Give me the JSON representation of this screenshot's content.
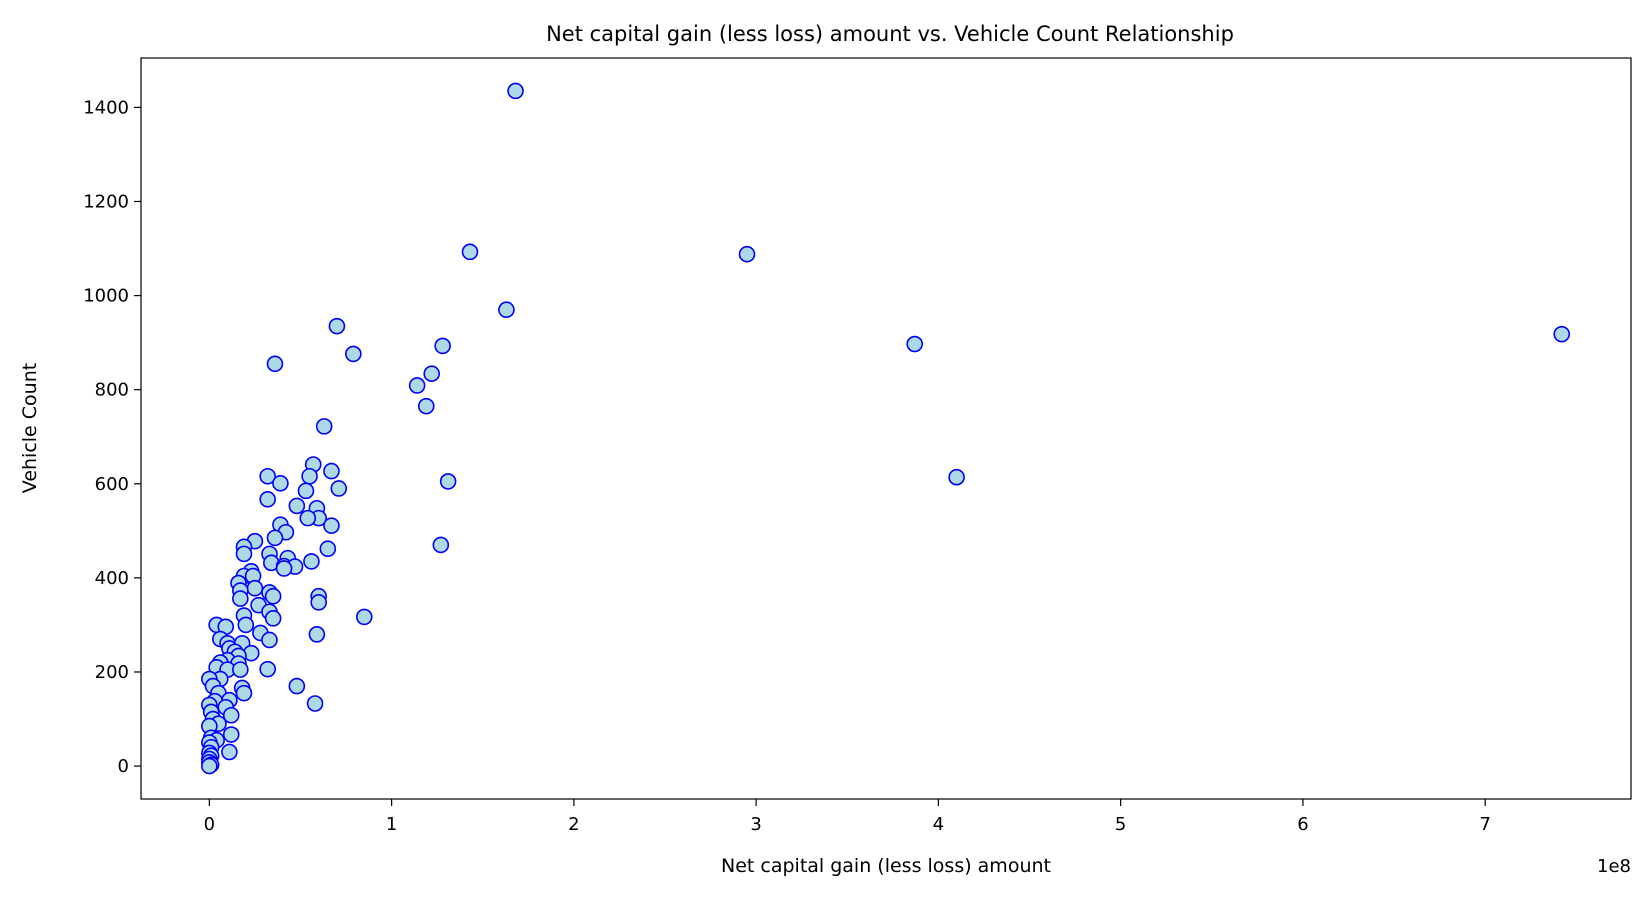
{
  "chart_data": {
    "type": "scatter",
    "title": "Net capital gain (less loss) amount vs. Vehicle Count Relationship",
    "xlabel": "Net capital gain (less loss) amount",
    "ylabel": "Vehicle Count",
    "x_offset_label": "1e8",
    "x_scale": 100000000,
    "xlim": [
      -0.375,
      7.8
    ],
    "ylim": [
      -70,
      1505
    ],
    "xticks": [
      0,
      1,
      2,
      3,
      4,
      5,
      6,
      7
    ],
    "xtick_labels": [
      "0",
      "1",
      "2",
      "3",
      "4",
      "5",
      "6",
      "7"
    ],
    "yticks": [
      0,
      200,
      400,
      600,
      800,
      1000,
      1200,
      1400
    ],
    "ytick_labels": [
      "0",
      "200",
      "400",
      "600",
      "800",
      "1000",
      "1200",
      "1400"
    ],
    "grid": false,
    "marker": {
      "face": "#add8e6",
      "edge": "#0000ff"
    },
    "points": [
      [
        1.68,
        1435
      ],
      [
        1.43,
        1093
      ],
      [
        2.95,
        1088
      ],
      [
        1.63,
        970
      ],
      [
        7.42,
        918
      ],
      [
        3.87,
        897
      ],
      [
        0.7,
        935
      ],
      [
        1.28,
        893
      ],
      [
        0.79,
        876
      ],
      [
        0.36,
        855
      ],
      [
        1.22,
        834
      ],
      [
        1.14,
        809
      ],
      [
        1.19,
        765
      ],
      [
        0.63,
        722
      ],
      [
        4.1,
        614
      ],
      [
        0.57,
        641
      ],
      [
        0.67,
        627
      ],
      [
        0.55,
        616
      ],
      [
        0.32,
        616
      ],
      [
        1.31,
        605
      ],
      [
        0.39,
        601
      ],
      [
        0.71,
        590
      ],
      [
        0.53,
        585
      ],
      [
        0.32,
        567
      ],
      [
        0.48,
        553
      ],
      [
        0.59,
        548
      ],
      [
        0.6,
        527
      ],
      [
        0.54,
        527
      ],
      [
        0.39,
        513
      ],
      [
        0.67,
        511
      ],
      [
        0.42,
        497
      ],
      [
        0.36,
        485
      ],
      [
        0.25,
        478
      ],
      [
        1.27,
        470
      ],
      [
        0.19,
        466
      ],
      [
        0.65,
        462
      ],
      [
        0.19,
        451
      ],
      [
        0.33,
        451
      ],
      [
        0.43,
        442
      ],
      [
        0.56,
        435
      ],
      [
        0.34,
        432
      ],
      [
        0.41,
        425
      ],
      [
        0.47,
        424
      ],
      [
        0.41,
        420
      ],
      [
        0.23,
        414
      ],
      [
        0.19,
        404
      ],
      [
        0.24,
        404
      ],
      [
        0.16,
        389
      ],
      [
        0.25,
        378
      ],
      [
        0.17,
        373
      ],
      [
        0.33,
        369
      ],
      [
        0.6,
        361
      ],
      [
        0.35,
        361
      ],
      [
        0.17,
        356
      ],
      [
        0.6,
        348
      ],
      [
        0.27,
        342
      ],
      [
        0.33,
        328
      ],
      [
        0.19,
        320
      ],
      [
        0.85,
        317
      ],
      [
        0.35,
        314
      ],
      [
        0.2,
        300
      ],
      [
        0.04,
        300
      ],
      [
        0.09,
        296
      ],
      [
        0.28,
        283
      ],
      [
        0.59,
        280
      ],
      [
        0.06,
        270
      ],
      [
        0.33,
        268
      ],
      [
        0.1,
        261
      ],
      [
        0.18,
        261
      ],
      [
        0.11,
        250
      ],
      [
        0.14,
        243
      ],
      [
        0.23,
        240
      ],
      [
        0.16,
        234
      ],
      [
        0.1,
        225
      ],
      [
        0.06,
        220
      ],
      [
        0.16,
        218
      ],
      [
        0.04,
        210
      ],
      [
        0.1,
        205
      ],
      [
        0.17,
        205
      ],
      [
        0.32,
        206
      ],
      [
        0.06,
        185
      ],
      [
        0.0,
        185
      ],
      [
        0.02,
        170
      ],
      [
        0.48,
        170
      ],
      [
        0.18,
        166
      ],
      [
        0.05,
        155
      ],
      [
        0.19,
        155
      ],
      [
        0.11,
        140
      ],
      [
        0.03,
        138
      ],
      [
        0.58,
        133
      ],
      [
        0.0,
        130
      ],
      [
        0.09,
        125
      ],
      [
        0.01,
        115
      ],
      [
        0.12,
        108
      ],
      [
        0.02,
        100
      ],
      [
        0.05,
        90
      ],
      [
        0.0,
        85
      ],
      [
        0.12,
        67
      ],
      [
        0.01,
        60
      ],
      [
        0.04,
        55
      ],
      [
        0.0,
        50
      ],
      [
        0.01,
        40
      ],
      [
        0.11,
        30
      ],
      [
        0.0,
        28
      ],
      [
        0.01,
        22
      ],
      [
        0.0,
        15
      ],
      [
        0.0,
        8
      ],
      [
        0.01,
        3
      ],
      [
        0.0,
        0
      ]
    ]
  }
}
